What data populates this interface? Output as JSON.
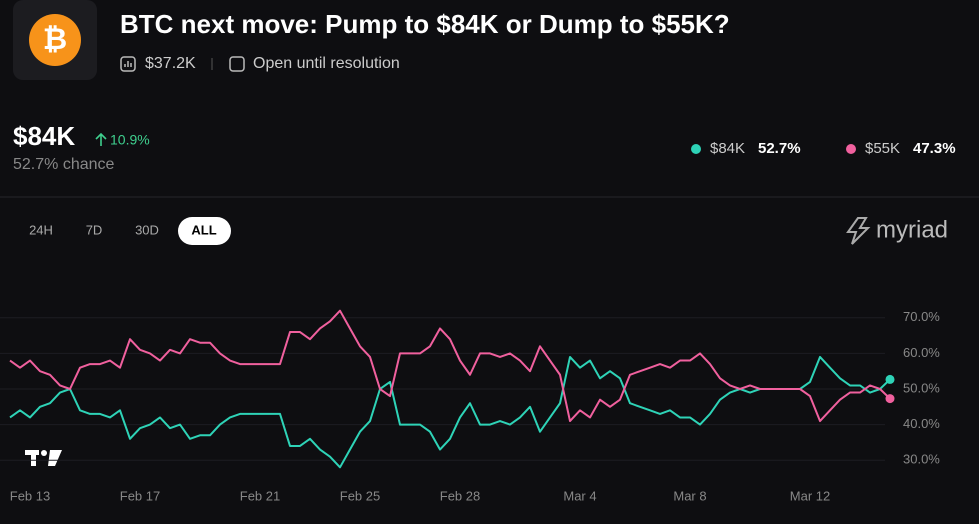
{
  "header": {
    "icon": "₿",
    "title": "BTC next move: Pump to $84K or Dump to $55K?",
    "volume": "$37.2K",
    "status": "Open until resolution"
  },
  "summary": {
    "outcome": "$84K",
    "change": "10.9%",
    "chance": "52.7% chance"
  },
  "legend": [
    {
      "name": "$84K",
      "value": "52.7%"
    },
    {
      "name": "$55K",
      "value": "47.3%"
    }
  ],
  "tabs": [
    "24H",
    "7D",
    "30D",
    "ALL"
  ],
  "brand": "myriad",
  "chart_data": {
    "type": "line",
    "grid": true,
    "categories": [
      null,
      null,
      "Feb 13",
      null,
      null,
      null,
      null,
      null,
      null,
      null,
      null,
      null,
      null,
      "Feb 17",
      null,
      null,
      null,
      null,
      null,
      null,
      null,
      null,
      null,
      null,
      null,
      "Feb 21",
      null,
      null,
      null,
      null,
      null,
      null,
      null,
      null,
      null,
      "Feb 25",
      null,
      null,
      null,
      null,
      null,
      null,
      null,
      null,
      null,
      "Feb 28",
      null,
      null,
      null,
      null,
      null,
      null,
      null,
      null,
      null,
      null,
      null,
      "Mar 4",
      null,
      null,
      null,
      null,
      null,
      null,
      null,
      null,
      null,
      null,
      "Mar 8",
      null,
      null,
      null,
      null,
      null,
      null,
      null,
      null,
      null,
      null,
      null,
      "Mar 12",
      null,
      null,
      null,
      null,
      null,
      null,
      null,
      null
    ],
    "series": [
      {
        "name": "$84K",
        "color": "#2ed3b7",
        "values": [
          42,
          44,
          42,
          45,
          46,
          49,
          50,
          44,
          43,
          43,
          42,
          44,
          36,
          39,
          40,
          42,
          39,
          40,
          36,
          37,
          37,
          40,
          42,
          43,
          43,
          43,
          43,
          43,
          34,
          34,
          36,
          33,
          31,
          28,
          33,
          38,
          41,
          50,
          52,
          40,
          40,
          40,
          38,
          33,
          36,
          42,
          46,
          40,
          40,
          41,
          40,
          42,
          45,
          38,
          42,
          46,
          59,
          56,
          58,
          53,
          55,
          53,
          46,
          45,
          44,
          43,
          44,
          42,
          42,
          40,
          43,
          47,
          49,
          50,
          49,
          50,
          50,
          50,
          50,
          50,
          52,
          59,
          56,
          53,
          51,
          51,
          49,
          50,
          52.7
        ]
      },
      {
        "name": "$55K",
        "color": "#f0609e",
        "values": [
          58,
          56,
          58,
          55,
          54,
          51,
          50,
          56,
          57,
          57,
          58,
          56,
          64,
          61,
          60,
          58,
          61,
          60,
          64,
          63,
          63,
          60,
          58,
          57,
          57,
          57,
          57,
          57,
          66,
          66,
          64,
          67,
          69,
          72,
          67,
          62,
          59,
          50,
          48,
          60,
          60,
          60,
          62,
          67,
          64,
          58,
          54,
          60,
          60,
          59,
          60,
          58,
          55,
          62,
          58,
          54,
          41,
          44,
          42,
          47,
          45,
          47,
          54,
          55,
          56,
          57,
          56,
          58,
          58,
          60,
          57,
          53,
          51,
          50,
          51,
          50,
          50,
          50,
          50,
          50,
          48,
          41,
          44,
          47,
          49,
          49,
          51,
          50,
          47.3
        ]
      }
    ],
    "ylim": [
      25,
      75
    ],
    "yticks": [
      {
        "value": 30,
        "label": "30.0%"
      },
      {
        "value": 40,
        "label": "40.0%"
      },
      {
        "value": 50,
        "label": "50.0%"
      },
      {
        "value": 60,
        "label": "60.0%"
      },
      {
        "value": 70,
        "label": "70.0%"
      }
    ]
  }
}
